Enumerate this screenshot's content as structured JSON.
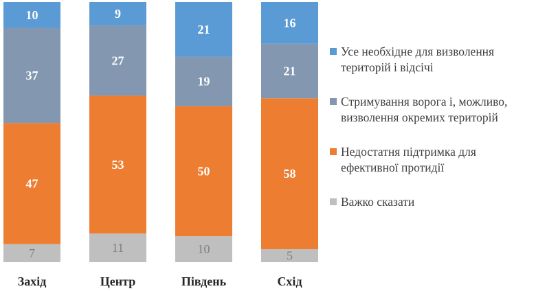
{
  "chart_data": {
    "type": "bar",
    "stacked": true,
    "percent": true,
    "categories": [
      "Захід",
      "Центр",
      "Південь",
      "Схід"
    ],
    "series": [
      {
        "name": "Важко сказати",
        "values": [
          7,
          11,
          10,
          5
        ],
        "color": "#bfbfbf",
        "label_color": "#7f7f7f"
      },
      {
        "name": "Недостатня підтримка для ефективної протидії",
        "values": [
          47,
          53,
          50,
          58
        ],
        "color": "#ed7d31",
        "label_color": "#ffffff"
      },
      {
        "name": "Стримування ворога і, можливо, визволення окремих територій",
        "values": [
          37,
          27,
          19,
          21
        ],
        "color": "#8497b0",
        "label_color": "#ffffff"
      },
      {
        "name": "Усе необхідне для визволення територій і відсічі",
        "values": [
          10,
          9,
          21,
          16
        ],
        "color": "#5b9bd5",
        "label_color": "#ffffff"
      }
    ],
    "legend_order": [
      3,
      2,
      1,
      0
    ],
    "legend_position": "right",
    "grid": false
  }
}
